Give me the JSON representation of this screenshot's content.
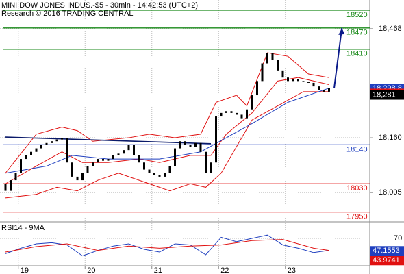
{
  "chart_data": {
    "type": "candlestick",
    "title": "MINI DOW JONES INDUS.-$5 - 30min - 14:42:53 (UTC+2)",
    "subtitle": "Research © 2016 TRADING CENTRAL",
    "ylim": [
      17926,
      18549
    ],
    "yticks": [
      {
        "value": 18468,
        "label": "18,468"
      },
      {
        "value": 18160,
        "label": "18,160"
      },
      {
        "value": 18005,
        "label": "18,005"
      }
    ],
    "grid": true,
    "xticks": [
      {
        "value": 3,
        "label": "19"
      },
      {
        "value": 16,
        "label": "20"
      },
      {
        "value": 29,
        "label": "21"
      },
      {
        "value": 42,
        "label": "22"
      },
      {
        "value": 55,
        "label": "23"
      }
    ],
    "candles": {
      "color": "#000000",
      "open": [
        18030,
        18010,
        18040,
        18060,
        18100,
        18110,
        18120,
        18130,
        18140,
        18145,
        18150,
        18155,
        18160,
        18090,
        18050,
        18040,
        18060,
        18080,
        18090,
        18100,
        18095,
        18100,
        18110,
        18115,
        18125,
        18140,
        18110,
        18090,
        18070,
        18060,
        18055,
        18050,
        18060,
        18080,
        18130,
        18150,
        18140,
        18135,
        18145,
        18120,
        18060,
        18090,
        18220,
        18230,
        18235,
        18230,
        18225,
        18215,
        18240,
        18280,
        18320,
        18370,
        18400,
        18380,
        18350,
        18330,
        18320,
        18325,
        18320,
        18318,
        18315,
        18305,
        18295,
        18290
      ],
      "close": [
        18010,
        18040,
        18060,
        18100,
        18110,
        18120,
        18130,
        18140,
        18145,
        18150,
        18155,
        18160,
        18090,
        18050,
        18040,
        18060,
        18080,
        18090,
        18100,
        18095,
        18100,
        18110,
        18115,
        18125,
        18140,
        18110,
        18090,
        18070,
        18060,
        18055,
        18050,
        18060,
        18080,
        18130,
        18150,
        18140,
        18135,
        18145,
        18120,
        18060,
        18090,
        18220,
        18230,
        18235,
        18230,
        18225,
        18215,
        18240,
        18280,
        18320,
        18370,
        18400,
        18380,
        18350,
        18330,
        18320,
        18325,
        18320,
        18318,
        18315,
        18305,
        18295,
        18290,
        18300
      ]
    },
    "overlays": [
      {
        "color": "#e01010",
        "x": [
          0,
          6,
          11,
          14,
          17,
          24,
          28,
          33,
          38,
          41,
          45,
          47,
          51,
          55,
          59,
          63
        ],
        "values": [
          18060,
          18170,
          18190,
          18180,
          18150,
          18160,
          18170,
          18160,
          18170,
          18260,
          18280,
          18250,
          18400,
          18390,
          18340,
          18330
        ]
      },
      {
        "color": "#e01010",
        "x": [
          0,
          6,
          10,
          14,
          18,
          22,
          28,
          32,
          36,
          39,
          42,
          48,
          53,
          58,
          63
        ],
        "values": [
          17990,
          18000,
          18020,
          18010,
          18040,
          18060,
          18030,
          18010,
          18030,
          18020,
          18060,
          18210,
          18250,
          18290,
          18290
        ]
      },
      {
        "color": "#e01010",
        "x": [
          0,
          6,
          11,
          15,
          20,
          26,
          30,
          36,
          40,
          43,
          48,
          53,
          57,
          63
        ],
        "values": [
          18030,
          18080,
          18120,
          18090,
          18090,
          18100,
          18090,
          18110,
          18110,
          18170,
          18230,
          18320,
          18330,
          18310
        ]
      },
      {
        "color": "#1f3fbf",
        "x": [
          0,
          8,
          13,
          20,
          30,
          38,
          43,
          48,
          55,
          63
        ],
        "values": [
          18060,
          18080,
          18110,
          18100,
          18100,
          18120,
          18160,
          18200,
          18260,
          18300
        ]
      },
      {
        "color": "#0a1a6a",
        "x": [
          0,
          40
        ],
        "values": [
          18162,
          18143
        ]
      }
    ],
    "forecast": {
      "color": "#0a1a8a",
      "x": [
        64,
        65.5
      ],
      "values": [
        18300,
        18470
      ]
    },
    "levels": [
      {
        "value": 18520,
        "color": "#1a8a1a"
      },
      {
        "value": 18470,
        "color": "#1a8a1a"
      },
      {
        "value": 18410,
        "color": "#1a8a1a"
      },
      {
        "value": 18140,
        "color": "#1f3fbf"
      },
      {
        "value": 18030,
        "color": "#e01010"
      },
      {
        "value": 17950,
        "color": "#e01010"
      }
    ],
    "price_labels": [
      {
        "value": 18298.8,
        "label": "18,298.8",
        "color": "#1f3fbf"
      },
      {
        "value": 18285,
        "label": "18,285",
        "color": "#e01010"
      },
      {
        "value": 18281,
        "label": "18,281",
        "color": "#000000"
      }
    ],
    "rsi": {
      "title": "RSI14 - 9MA",
      "ylim": [
        20,
        95
      ],
      "yticks": [
        70
      ],
      "series": [
        {
          "color": "#1f3fbf",
          "x": [
            0,
            3,
            6,
            9,
            12,
            15,
            18,
            21,
            24,
            27,
            30,
            33,
            36,
            39,
            42,
            45,
            48,
            51,
            54,
            57,
            60,
            63
          ],
          "values": [
            42,
            52,
            60,
            62,
            58,
            38,
            48,
            56,
            60,
            50,
            45,
            60,
            58,
            40,
            72,
            64,
            70,
            76,
            58,
            52,
            44,
            48
          ]
        },
        {
          "color": "#e01010",
          "x": [
            0,
            6,
            12,
            18,
            24,
            30,
            36,
            42,
            48,
            54,
            60,
            63
          ],
          "values": [
            45,
            55,
            60,
            48,
            56,
            52,
            56,
            58,
            66,
            68,
            52,
            48
          ]
        }
      ],
      "labels": [
        {
          "value": 47.1553,
          "color": "#1f3fbf"
        },
        {
          "value": 43.9741,
          "color": "#e01010"
        }
      ]
    }
  }
}
